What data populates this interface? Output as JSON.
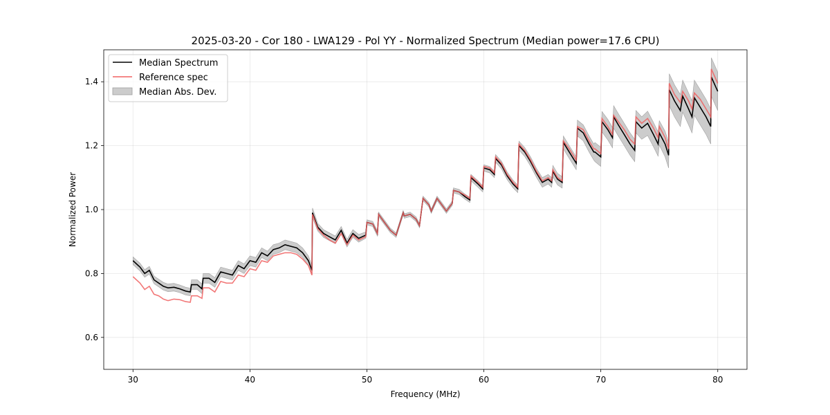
{
  "chart_data": {
    "type": "line",
    "title": "2025-03-20 - Cor 180 - LWA129 - Pol YY - Normalized Spectrum (Median power=17.6 CPU)",
    "xlabel": "Frequency (MHz)",
    "ylabel": "Normalized Power",
    "xlim": [
      27.5,
      82.5
    ],
    "ylim": [
      0.5,
      1.5
    ],
    "xticks": [
      30,
      40,
      50,
      60,
      70,
      80
    ],
    "xtick_labels": [
      "30",
      "40",
      "50",
      "60",
      "70",
      "80"
    ],
    "yticks": [
      0.6,
      0.8,
      1.0,
      1.2,
      1.4
    ],
    "ytick_labels": [
      "0.6",
      "0.8",
      "1.0",
      "1.2",
      "1.4"
    ],
    "grid": true,
    "legend_position": "top-left",
    "legend": [
      {
        "label": "Median Spectrum",
        "kind": "line",
        "color": "#000000"
      },
      {
        "label": "Reference spec",
        "kind": "line",
        "color": "#f06060"
      },
      {
        "label": "Median Abs. Dev.",
        "kind": "band",
        "color": "#b0b0b0"
      }
    ],
    "x": [
      30.0,
      30.3,
      30.6,
      31.0,
      31.4,
      31.8,
      32.2,
      32.6,
      33.0,
      33.5,
      34.0,
      34.5,
      34.9,
      35.0,
      35.5,
      35.9,
      36.0,
      36.5,
      37.0,
      37.5,
      38.0,
      38.5,
      39.0,
      39.5,
      40.0,
      40.5,
      41.0,
      41.5,
      42.0,
      42.5,
      43.0,
      43.5,
      44.0,
      44.5,
      45.0,
      45.3,
      45.35,
      45.8,
      46.3,
      46.8,
      47.3,
      47.8,
      48.3,
      48.8,
      49.3,
      49.9,
      50.0,
      50.5,
      50.9,
      51.0,
      51.5,
      52.0,
      52.5,
      53.1,
      53.2,
      53.7,
      54.2,
      54.5,
      54.8,
      55.3,
      55.5,
      56.0,
      56.5,
      56.8,
      57.3,
      57.4,
      57.9,
      58.4,
      58.8,
      58.9,
      59.5,
      59.9,
      60.0,
      60.5,
      60.9,
      61.0,
      61.5,
      62.0,
      62.5,
      62.9,
      63.0,
      63.5,
      64.0,
      64.5,
      65.0,
      65.5,
      65.8,
      65.9,
      66.3,
      66.7,
      66.8,
      67.3,
      67.9,
      68.0,
      68.5,
      69.0,
      69.4,
      69.5,
      70.0,
      70.1,
      70.6,
      71.0,
      71.1,
      71.5,
      72.0,
      72.5,
      72.9,
      73.0,
      73.5,
      74.0,
      74.5,
      74.9,
      75.0,
      75.5,
      75.8,
      75.85,
      76.3,
      76.8,
      77.0,
      77.5,
      77.8,
      78.0,
      78.5,
      79.0,
      79.4,
      79.45,
      80.0
    ],
    "series": [
      {
        "name": "Median Spectrum",
        "color": "#000000",
        "values": [
          0.84,
          0.83,
          0.82,
          0.8,
          0.81,
          0.78,
          0.77,
          0.76,
          0.755,
          0.757,
          0.752,
          0.745,
          0.742,
          0.765,
          0.765,
          0.752,
          0.785,
          0.785,
          0.772,
          0.805,
          0.8,
          0.795,
          0.825,
          0.815,
          0.84,
          0.835,
          0.865,
          0.855,
          0.875,
          0.88,
          0.89,
          0.885,
          0.88,
          0.865,
          0.84,
          0.81,
          0.99,
          0.945,
          0.925,
          0.915,
          0.905,
          0.935,
          0.895,
          0.925,
          0.91,
          0.92,
          0.96,
          0.955,
          0.925,
          0.985,
          0.96,
          0.935,
          0.92,
          0.99,
          0.98,
          0.985,
          0.97,
          0.95,
          1.035,
          1.015,
          0.995,
          1.035,
          1.01,
          0.995,
          1.02,
          1.06,
          1.055,
          1.04,
          1.03,
          1.1,
          1.08,
          1.065,
          1.13,
          1.125,
          1.11,
          1.16,
          1.14,
          1.105,
          1.08,
          1.065,
          1.2,
          1.18,
          1.15,
          1.115,
          1.085,
          1.095,
          1.085,
          1.12,
          1.095,
          1.085,
          1.21,
          1.18,
          1.145,
          1.255,
          1.24,
          1.205,
          1.18,
          1.18,
          1.165,
          1.275,
          1.25,
          1.225,
          1.29,
          1.265,
          1.235,
          1.205,
          1.185,
          1.275,
          1.255,
          1.27,
          1.235,
          1.205,
          1.24,
          1.205,
          1.17,
          1.375,
          1.34,
          1.31,
          1.355,
          1.315,
          1.29,
          1.35,
          1.32,
          1.29,
          1.26,
          1.415,
          1.37
        ]
      },
      {
        "name": "Reference spec",
        "color": "#f06060",
        "values": [
          0.79,
          0.78,
          0.77,
          0.75,
          0.76,
          0.735,
          0.73,
          0.72,
          0.715,
          0.72,
          0.718,
          0.712,
          0.71,
          0.73,
          0.73,
          0.722,
          0.755,
          0.755,
          0.742,
          0.775,
          0.77,
          0.77,
          0.795,
          0.79,
          0.815,
          0.81,
          0.84,
          0.835,
          0.855,
          0.86,
          0.865,
          0.865,
          0.86,
          0.845,
          0.825,
          0.795,
          0.985,
          0.94,
          0.92,
          0.905,
          0.895,
          0.925,
          0.89,
          0.92,
          0.905,
          0.915,
          0.96,
          0.955,
          0.925,
          0.985,
          0.96,
          0.935,
          0.92,
          0.99,
          0.98,
          0.985,
          0.97,
          0.95,
          1.035,
          1.015,
          0.995,
          1.035,
          1.01,
          0.995,
          1.02,
          1.06,
          1.055,
          1.045,
          1.035,
          1.105,
          1.085,
          1.07,
          1.135,
          1.13,
          1.115,
          1.165,
          1.145,
          1.11,
          1.085,
          1.07,
          1.205,
          1.185,
          1.155,
          1.12,
          1.09,
          1.1,
          1.09,
          1.125,
          1.1,
          1.09,
          1.215,
          1.19,
          1.155,
          1.26,
          1.25,
          1.215,
          1.19,
          1.19,
          1.175,
          1.285,
          1.26,
          1.235,
          1.295,
          1.275,
          1.25,
          1.22,
          1.205,
          1.29,
          1.27,
          1.285,
          1.255,
          1.225,
          1.26,
          1.225,
          1.19,
          1.395,
          1.36,
          1.335,
          1.37,
          1.34,
          1.315,
          1.365,
          1.345,
          1.315,
          1.29,
          1.44,
          1.395
        ]
      },
      {
        "name": "Median Abs. Dev.",
        "kind": "band",
        "color": "#b0b0b0",
        "half_width": [
          0.012,
          0.012,
          0.012,
          0.012,
          0.012,
          0.012,
          0.012,
          0.012,
          0.012,
          0.012,
          0.012,
          0.012,
          0.012,
          0.015,
          0.015,
          0.015,
          0.015,
          0.015,
          0.015,
          0.015,
          0.015,
          0.015,
          0.015,
          0.015,
          0.015,
          0.015,
          0.015,
          0.015,
          0.015,
          0.015,
          0.015,
          0.015,
          0.015,
          0.015,
          0.015,
          0.015,
          0.015,
          0.012,
          0.012,
          0.012,
          0.012,
          0.012,
          0.012,
          0.012,
          0.012,
          0.01,
          0.008,
          0.008,
          0.008,
          0.007,
          0.007,
          0.007,
          0.007,
          0.007,
          0.007,
          0.007,
          0.007,
          0.007,
          0.007,
          0.007,
          0.007,
          0.007,
          0.007,
          0.007,
          0.007,
          0.008,
          0.008,
          0.008,
          0.008,
          0.01,
          0.01,
          0.01,
          0.01,
          0.01,
          0.01,
          0.012,
          0.012,
          0.012,
          0.012,
          0.012,
          0.014,
          0.014,
          0.014,
          0.014,
          0.015,
          0.015,
          0.015,
          0.018,
          0.018,
          0.018,
          0.02,
          0.02,
          0.02,
          0.025,
          0.025,
          0.025,
          0.025,
          0.03,
          0.03,
          0.032,
          0.032,
          0.032,
          0.035,
          0.035,
          0.035,
          0.035,
          0.035,
          0.035,
          0.035,
          0.038,
          0.038,
          0.038,
          0.038,
          0.04,
          0.04,
          0.05,
          0.05,
          0.05,
          0.05,
          0.05,
          0.05,
          0.055,
          0.055,
          0.055,
          0.055,
          0.06,
          0.06
        ]
      }
    ]
  }
}
